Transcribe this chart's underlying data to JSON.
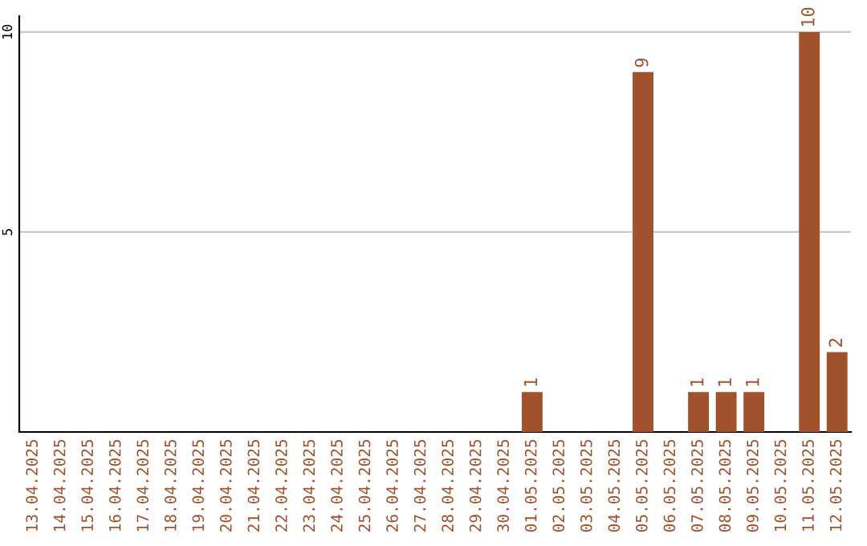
{
  "chart_data": {
    "type": "bar",
    "categories": [
      "13.04.2025",
      "14.04.2025",
      "15.04.2025",
      "16.04.2025",
      "17.04.2025",
      "18.04.2025",
      "19.04.2025",
      "20.04.2025",
      "21.04.2025",
      "22.04.2025",
      "23.04.2025",
      "24.04.2025",
      "25.04.2025",
      "26.04.2025",
      "27.04.2025",
      "28.04.2025",
      "29.04.2025",
      "30.04.2025",
      "01.05.2025",
      "02.05.2025",
      "03.05.2025",
      "04.05.2025",
      "05.05.2025",
      "06.05.2025",
      "07.05.2025",
      "08.05.2025",
      "09.05.2025",
      "10.05.2025",
      "11.05.2025",
      "12.05.2025"
    ],
    "values": [
      0,
      0,
      0,
      0,
      0,
      0,
      0,
      0,
      0,
      0,
      0,
      0,
      0,
      0,
      0,
      0,
      0,
      0,
      1,
      0,
      0,
      0,
      9,
      0,
      1,
      1,
      1,
      0,
      10,
      2
    ],
    "value_labels": [
      null,
      null,
      null,
      null,
      null,
      null,
      null,
      null,
      null,
      null,
      null,
      null,
      null,
      null,
      null,
      null,
      null,
      null,
      "1",
      null,
      null,
      null,
      "9",
      null,
      "1",
      "1",
      "1",
      null,
      "10",
      "2"
    ],
    "color": "#a0522d",
    "ylim": [
      0,
      10.4
    ],
    "yticks": [
      5,
      10
    ],
    "grid": "y"
  }
}
